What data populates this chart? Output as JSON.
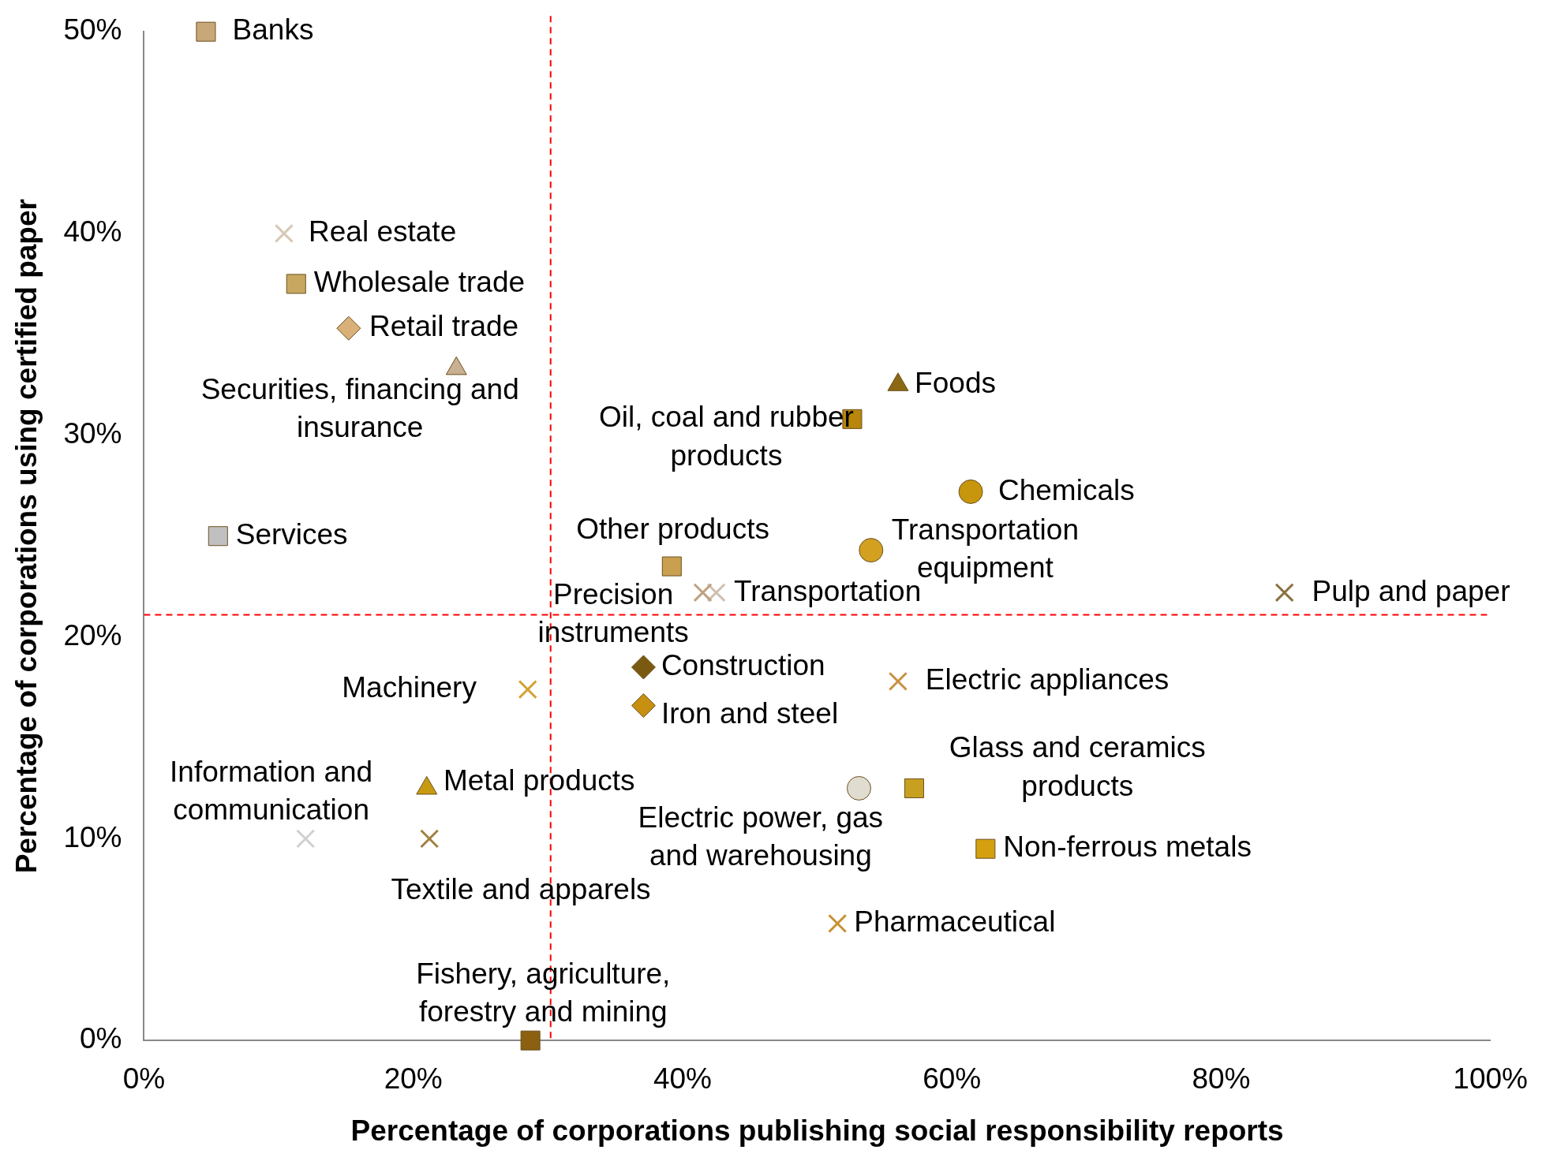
{
  "chart_data": {
    "type": "scatter",
    "xlabel": "Percentage of corporations publishing social responsibility reports",
    "ylabel": "Percentage of corporations using certified paper",
    "xlim": [
      0,
      100
    ],
    "xticks": [
      {
        "value": 0,
        "label": "0%"
      },
      {
        "value": 20,
        "label": "20%"
      },
      {
        "value": 40,
        "label": "40%"
      },
      {
        "value": 60,
        "label": "60%"
      },
      {
        "value": 80,
        "label": "80%"
      },
      {
        "value": 100,
        "label": "100%"
      }
    ],
    "ylim": [
      0,
      50
    ],
    "yticks": [
      {
        "value": 0,
        "label": "0%"
      },
      {
        "value": 10,
        "label": "10%"
      },
      {
        "value": 20,
        "label": "20%"
      },
      {
        "value": 30,
        "label": "30%"
      },
      {
        "value": 40,
        "label": "40%"
      },
      {
        "value": 50,
        "label": "50%"
      }
    ],
    "grid": false,
    "legend": false,
    "ref_lines": [
      {
        "axis": "x",
        "value": 30.2,
        "color": "#ff0000",
        "line_style": "dashed"
      },
      {
        "axis": "y",
        "value": 21.1,
        "color": "#ff0000",
        "line_style": "dashed"
      }
    ],
    "series": [
      {
        "name": "Banks",
        "color": "#c8a878",
        "marker": "square",
        "x": [
          4.6
        ],
        "values": [
          50
        ]
      },
      {
        "name": "Real estate",
        "color": "#d8c8b8",
        "marker": "cross",
        "x": [
          10.4
        ],
        "values": [
          40
        ]
      },
      {
        "name": "Wholesale trade",
        "color": "#c8a860",
        "marker": "square",
        "x": [
          11.3
        ],
        "values": [
          37.5
        ]
      },
      {
        "name": "Retail trade",
        "color": "#d8b078",
        "marker": "diamond",
        "x": [
          15.2
        ],
        "values": [
          35.3
        ]
      },
      {
        "name": "Securities, financing and insurance",
        "color": "#c8b090",
        "marker": "triangle",
        "x": [
          23.2
        ],
        "values": [
          33.3
        ]
      },
      {
        "name": "Services",
        "color": "#c0c0c0",
        "marker": "square",
        "x": [
          5.5
        ],
        "values": [
          25
        ]
      },
      {
        "name": "Foods",
        "color": "#8b6914",
        "marker": "triangle",
        "x": [
          56
        ],
        "values": [
          32.5
        ]
      },
      {
        "name": "Oil, coal and rubber products",
        "color": "#b8860b",
        "marker": "square",
        "x": [
          52.6
        ],
        "values": [
          30.8
        ]
      },
      {
        "name": "Chemicals",
        "color": "#c8960c",
        "marker": "circle",
        "x": [
          61.4
        ],
        "values": [
          27.2
        ]
      },
      {
        "name": "Transportation equipment",
        "color": "#d4a020",
        "marker": "circle",
        "x": [
          54
        ],
        "values": [
          24.3
        ]
      },
      {
        "name": "Other products",
        "color": "#c8a050",
        "marker": "square",
        "x": [
          39.2
        ],
        "values": [
          23.5
        ]
      },
      {
        "name": "Precision instruments",
        "color": "#c0a080",
        "marker": "cross",
        "x": [
          41.5
        ],
        "values": [
          22.2
        ]
      },
      {
        "name": "Transportation",
        "color": "#d0c0b0",
        "marker": "cross",
        "x": [
          42.5
        ],
        "values": [
          22.2
        ]
      },
      {
        "name": "Pulp and paper",
        "color": "#8b7040",
        "marker": "cross",
        "x": [
          84.7
        ],
        "values": [
          22.2
        ]
      },
      {
        "name": "Construction",
        "color": "#7a5a10",
        "marker": "diamond",
        "x": [
          37.1
        ],
        "values": [
          18.5
        ]
      },
      {
        "name": "Iron and steel",
        "color": "#c89010",
        "marker": "diamond",
        "x": [
          37.1
        ],
        "values": [
          16.6
        ]
      },
      {
        "name": "Machinery",
        "color": "#d4a030",
        "marker": "cross",
        "x": [
          28.5
        ],
        "values": [
          17.4
        ]
      },
      {
        "name": "Electric appliances",
        "color": "#c89040",
        "marker": "cross",
        "x": [
          56
        ],
        "values": [
          17.8
        ]
      },
      {
        "name": "Metal products",
        "color": "#c89a10",
        "marker": "triangle",
        "x": [
          21
        ],
        "values": [
          12.5
        ]
      },
      {
        "name": "Electric power, gas and warehousing",
        "color": "#e0dcd0",
        "marker": "circle",
        "x": [
          53.1
        ],
        "values": [
          12.5
        ]
      },
      {
        "name": "Glass and ceramics products",
        "color": "#c8a020",
        "marker": "square",
        "x": [
          57.2
        ],
        "values": [
          12.5
        ]
      },
      {
        "name": "Information and communication",
        "color": "#d0d0d0",
        "marker": "cross",
        "x": [
          12
        ],
        "values": [
          10
        ]
      },
      {
        "name": "Textile and apparels",
        "color": "#a08040",
        "marker": "cross",
        "x": [
          21.2
        ],
        "values": [
          10
        ]
      },
      {
        "name": "Non-ferrous metals",
        "color": "#d4a010",
        "marker": "square",
        "x": [
          62.5
        ],
        "values": [
          9.5
        ]
      },
      {
        "name": "Pharmaceutical",
        "color": "#c89030",
        "marker": "cross",
        "x": [
          51.5
        ],
        "values": [
          5.8
        ]
      },
      {
        "name": "Fishery, agriculture, forestry and mining",
        "color": "#8b6010",
        "marker": "square",
        "x": [
          28.7
        ],
        "values": [
          0
        ]
      }
    ]
  }
}
